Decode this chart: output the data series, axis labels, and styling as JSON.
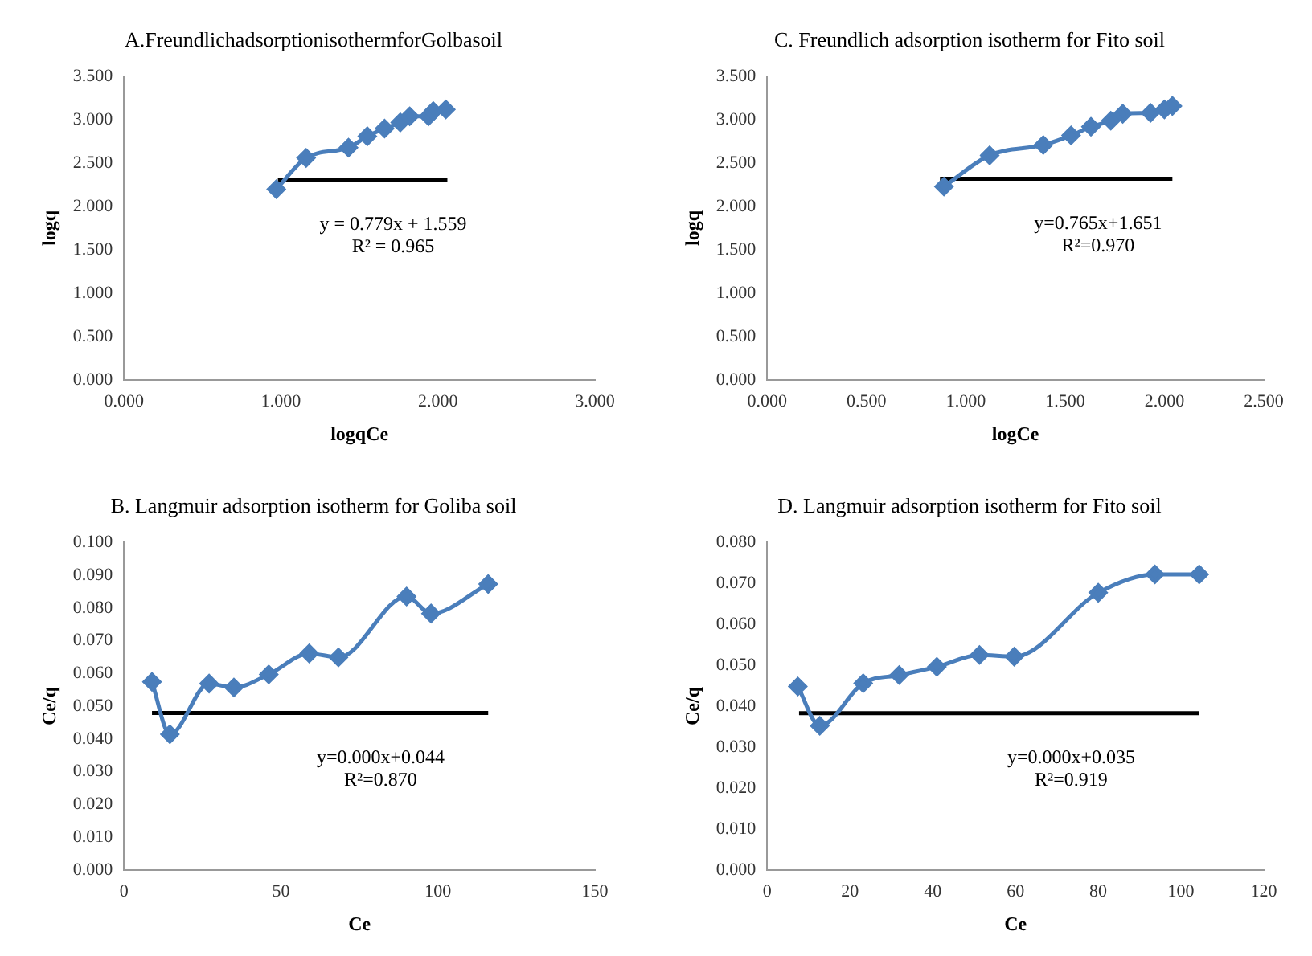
{
  "chart_data": [
    {
      "type": "line",
      "title": "A.FreundlichadsorptionisothermforGolbasoil",
      "xlabel": "logqCe",
      "ylabel": "logq",
      "xlim": [
        0,
        3
      ],
      "xticks": [
        {
          "value": 0,
          "label": "0.000"
        },
        {
          "value": 1,
          "label": "1.000"
        },
        {
          "value": 2,
          "label": "2.000"
        },
        {
          "value": 3,
          "label": "3.000"
        }
      ],
      "ylim": [
        0,
        3.5
      ],
      "yticks": [
        {
          "value": 0,
          "label": "0.000"
        },
        {
          "value": 0.5,
          "label": "0.500"
        },
        {
          "value": 1,
          "label": "1.000"
        },
        {
          "value": 1.5,
          "label": "1.500"
        },
        {
          "value": 2,
          "label": "2.000"
        },
        {
          "value": 2.5,
          "label": "2.500"
        },
        {
          "value": 3,
          "label": "3.000"
        },
        {
          "value": 3.5,
          "label": "3.500"
        }
      ],
      "grid": false,
      "legend": false,
      "series": [
        {
          "color": "#4a7ebb",
          "marker": "diamond",
          "x": [
            0.97,
            1.16,
            1.43,
            1.55,
            1.66,
            1.76,
            1.82,
            1.94,
            1.97,
            2.05
          ],
          "values": [
            2.2,
            2.56,
            2.68,
            2.81,
            2.9,
            2.97,
            3.04,
            3.04,
            3.1,
            3.12
          ]
        },
        {
          "color": "#000000",
          "marker": "none",
          "x": [
            0.98,
            2.06
          ],
          "values": [
            2.31,
            2.31
          ]
        }
      ],
      "annotations": [
        "y = 0.779x + 1.559",
        "R² = 0.965"
      ]
    },
    {
      "type": "line",
      "title": "C. Freundlich adsorption isotherm for Fito soil",
      "xlabel": "logCe",
      "ylabel": "logq",
      "xlim": [
        0,
        2.5
      ],
      "xticks": [
        {
          "value": 0,
          "label": "0.000"
        },
        {
          "value": 0.5,
          "label": "0.500"
        },
        {
          "value": 1,
          "label": "1.000"
        },
        {
          "value": 1.5,
          "label": "1.500"
        },
        {
          "value": 2,
          "label": "2.000"
        },
        {
          "value": 2.5,
          "label": "2.500"
        }
      ],
      "ylim": [
        0,
        3.5
      ],
      "yticks": [
        {
          "value": 0,
          "label": "0.000"
        },
        {
          "value": 0.5,
          "label": "0.500"
        },
        {
          "value": 1,
          "label": "1.000"
        },
        {
          "value": 1.5,
          "label": "1.500"
        },
        {
          "value": 2,
          "label": "2.000"
        },
        {
          "value": 2.5,
          "label": "2.500"
        },
        {
          "value": 3,
          "label": "3.000"
        },
        {
          "value": 3.5,
          "label": "3.500"
        }
      ],
      "grid": false,
      "legend": false,
      "series": [
        {
          "color": "#4a7ebb",
          "marker": "diamond",
          "x": [
            0.89,
            1.12,
            1.39,
            1.53,
            1.63,
            1.73,
            1.79,
            1.93,
            2.0,
            2.04
          ],
          "values": [
            2.23,
            2.59,
            2.71,
            2.82,
            2.92,
            2.99,
            3.07,
            3.08,
            3.12,
            3.16
          ]
        },
        {
          "color": "#000000",
          "marker": "none",
          "x": [
            0.87,
            2.04
          ],
          "values": [
            2.32,
            2.32
          ]
        }
      ],
      "annotations": [
        "y=0.765x+1.651",
        "R²=0.970"
      ]
    },
    {
      "type": "line",
      "title": "B. Langmuir adsorption isotherm for Goliba soil",
      "xlabel": "Ce",
      "ylabel": "Ce/q",
      "xlim": [
        0,
        150
      ],
      "xticks": [
        0,
        50,
        100,
        150
      ],
      "ylim": [
        0,
        0.1
      ],
      "yticks": [
        {
          "value": 0,
          "label": "0.000"
        },
        {
          "value": 0.01,
          "label": "0.010"
        },
        {
          "value": 0.02,
          "label": "0.020"
        },
        {
          "value": 0.03,
          "label": "0.030"
        },
        {
          "value": 0.04,
          "label": "0.040"
        },
        {
          "value": 0.05,
          "label": "0.050"
        },
        {
          "value": 0.06,
          "label": "0.060"
        },
        {
          "value": 0.07,
          "label": "0.070"
        },
        {
          "value": 0.08,
          "label": "0.080"
        },
        {
          "value": 0.09,
          "label": "0.090"
        },
        {
          "value": 0.1,
          "label": "0.100"
        }
      ],
      "grid": false,
      "legend": false,
      "series": [
        {
          "color": "#4a7ebb",
          "marker": "diamond",
          "x": [
            8.9,
            14.6,
            27.1,
            35.0,
            46.1,
            59.0,
            68.3,
            90.0,
            97.8,
            116.0
          ],
          "values": [
            0.0574,
            0.0414,
            0.0569,
            0.0557,
            0.0597,
            0.0661,
            0.0649,
            0.0835,
            0.0783,
            0.0873
          ]
        },
        {
          "color": "#000000",
          "marker": "none",
          "x": [
            8.9,
            116.0
          ],
          "values": [
            0.0479,
            0.0479
          ]
        }
      ],
      "annotations": [
        "y=0.000x+0.044",
        "R²=0.870"
      ]
    },
    {
      "type": "line",
      "title": "D. Langmuir adsorption isotherm for Fito soil",
      "xlabel": "Ce",
      "ylabel": "Ce/q",
      "xlim": [
        0,
        120
      ],
      "xticks": [
        0,
        20,
        40,
        60,
        80,
        100,
        120
      ],
      "ylim": [
        0,
        0.08
      ],
      "yticks": [
        {
          "value": 0,
          "label": "0.000"
        },
        {
          "value": 0.01,
          "label": "0.010"
        },
        {
          "value": 0.02,
          "label": "0.020"
        },
        {
          "value": 0.03,
          "label": "0.030"
        },
        {
          "value": 0.04,
          "label": "0.040"
        },
        {
          "value": 0.05,
          "label": "0.050"
        },
        {
          "value": 0.06,
          "label": "0.060"
        },
        {
          "value": 0.07,
          "label": "0.070"
        },
        {
          "value": 0.08,
          "label": "0.080"
        }
      ],
      "grid": false,
      "legend": false,
      "series": [
        {
          "color": "#4a7ebb",
          "marker": "diamond",
          "x": [
            7.4,
            12.7,
            23.2,
            31.9,
            41.0,
            51.3,
            59.7,
            80.0,
            93.7,
            104.4
          ],
          "values": [
            0.0448,
            0.0352,
            0.0456,
            0.0476,
            0.0496,
            0.0525,
            0.0521,
            0.0677,
            0.0722,
            0.0722
          ]
        },
        {
          "color": "#000000",
          "marker": "none",
          "x": [
            7.7,
            104.4
          ],
          "values": [
            0.0383,
            0.0383
          ]
        }
      ],
      "annotations": [
        "y=0.000x+0.035",
        "R²=0.919"
      ]
    }
  ]
}
